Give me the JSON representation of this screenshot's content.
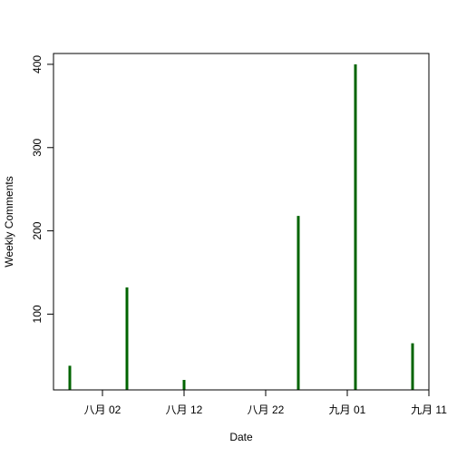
{
  "chart_data": {
    "type": "bar",
    "style": "vertical-lines",
    "xlabel": "Date",
    "ylabel": "Weekly Comments",
    "x_scale": "date",
    "xlim": [
      "2023-07-27",
      "2023-09-11"
    ],
    "ylim": [
      9,
      413
    ],
    "grid": false,
    "legend": "none",
    "x": [
      "2023-07-29",
      "2023-08-05",
      "2023-08-12",
      "2023-08-26",
      "2023-09-02",
      "2023-09-09"
    ],
    "values": [
      38,
      132,
      21,
      218,
      400,
      65
    ],
    "colors": {
      "line": "#006400",
      "axis": "#000000"
    },
    "x_ticks": [
      {
        "date": "2023-08-02",
        "label": "八月 02"
      },
      {
        "date": "2023-08-12",
        "label": "八月 12"
      },
      {
        "date": "2023-08-22",
        "label": "八月 22"
      },
      {
        "date": "2023-09-01",
        "label": "九月 01"
      },
      {
        "date": "2023-09-11",
        "label": "九月 11"
      }
    ],
    "y_ticks": [
      100,
      200,
      300,
      400
    ]
  }
}
